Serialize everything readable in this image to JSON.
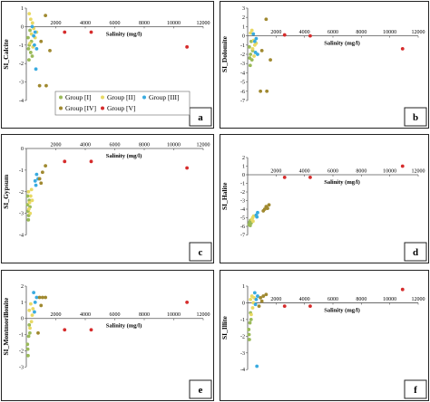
{
  "groups": [
    {
      "name": "Group [I]",
      "color": "#9aba59"
    },
    {
      "name": "Group [II]",
      "color": "#e8d964"
    },
    {
      "name": "Group [III]",
      "color": "#39abe0"
    },
    {
      "name": "Group [IV]",
      "color": "#a08930"
    },
    {
      "name": "Group [V]",
      "color": "#d62c2c"
    }
  ],
  "chart_data": [
    {
      "type": "scatter",
      "letter": "a",
      "ylabel": "SI_Calcite",
      "xlabel": "Salinity (mg/l)",
      "xlim": [
        0,
        12000
      ],
      "xticks": [
        2000,
        4000,
        6000,
        8000,
        10000,
        12000
      ],
      "ylim": [
        -4,
        1
      ],
      "yticks": [
        1,
        0,
        -1,
        -2,
        -3,
        -4
      ],
      "xaxis_at": 0,
      "legend": "inside-bottom",
      "series": [
        {
          "group": 0,
          "points": [
            [
              120,
              -0.6
            ],
            [
              200,
              -1.0
            ],
            [
              250,
              -0.2
            ],
            [
              300,
              -1.4
            ],
            [
              180,
              -1.8
            ],
            [
              350,
              -0.8
            ],
            [
              150,
              -1.2
            ],
            [
              400,
              -1.6
            ]
          ]
        },
        {
          "group": 1,
          "points": [
            [
              200,
              0.7
            ],
            [
              300,
              0.4
            ],
            [
              420,
              0.2
            ],
            [
              500,
              -0.1
            ],
            [
              350,
              -0.4
            ],
            [
              600,
              -0.6
            ],
            [
              250,
              -0.9
            ],
            [
              700,
              -0.3
            ],
            [
              450,
              -1.1
            ]
          ]
        },
        {
          "group": 2,
          "points": [
            [
              400,
              0.0
            ],
            [
              600,
              -0.3
            ],
            [
              500,
              -0.5
            ],
            [
              550,
              -1.0
            ],
            [
              700,
              -1.2
            ],
            [
              650,
              -2.3
            ]
          ]
        },
        {
          "group": 3,
          "points": [
            [
              1300,
              0.6
            ],
            [
              1000,
              -0.8
            ],
            [
              1600,
              -1.3
            ],
            [
              900,
              -3.2
            ],
            [
              1350,
              -3.2
            ]
          ]
        },
        {
          "group": 4,
          "points": [
            [
              2600,
              -0.3
            ],
            [
              4400,
              -0.3
            ],
            [
              10900,
              -1.1
            ]
          ]
        }
      ]
    },
    {
      "type": "scatter",
      "letter": "b",
      "ylabel": "SI_Dolomite",
      "xlabel": "Salinity (mg/l)",
      "xlim": [
        0,
        12000
      ],
      "xticks": [
        2000,
        4000,
        6000,
        8000,
        10000,
        12000
      ],
      "ylim": [
        -7,
        3
      ],
      "yticks": [
        3,
        2,
        1,
        0,
        -1,
        -2,
        -3,
        -4,
        -5,
        -6,
        -7
      ],
      "xaxis_at": 0,
      "series": [
        {
          "group": 0,
          "points": [
            [
              120,
              -1.2
            ],
            [
              200,
              -2.0
            ],
            [
              250,
              -0.6
            ],
            [
              300,
              -2.6
            ],
            [
              180,
              -3.2
            ],
            [
              350,
              -1.6
            ],
            [
              150,
              -2.4
            ]
          ]
        },
        {
          "group": 1,
          "points": [
            [
              200,
              0.3
            ],
            [
              300,
              0.6
            ],
            [
              420,
              -0.5
            ],
            [
              500,
              -1.0
            ],
            [
              350,
              -1.4
            ],
            [
              600,
              -0.8
            ],
            [
              450,
              -2.2
            ]
          ]
        },
        {
          "group": 2,
          "points": [
            [
              400,
              0.2
            ],
            [
              600,
              -0.3
            ],
            [
              500,
              -0.6
            ],
            [
              550,
              -1.8
            ],
            [
              700,
              -2.0
            ]
          ]
        },
        {
          "group": 3,
          "points": [
            [
              1300,
              1.8
            ],
            [
              1000,
              -1.6
            ],
            [
              1600,
              -2.6
            ],
            [
              900,
              -6.0
            ],
            [
              1350,
              -6.0
            ]
          ]
        },
        {
          "group": 4,
          "points": [
            [
              2600,
              0.1
            ],
            [
              4400,
              0.0
            ],
            [
              10900,
              -1.4
            ]
          ]
        }
      ]
    },
    {
      "type": "scatter",
      "letter": "c",
      "ylabel": "SI_Gypsum",
      "xlabel": "Salinity (mg/l)",
      "xlim": [
        0,
        12000
      ],
      "xticks": [
        2000,
        4000,
        6000,
        8000,
        10000,
        12000
      ],
      "ylim": [
        -4,
        0
      ],
      "yticks": [
        0,
        -1,
        -2,
        -3,
        -4
      ],
      "xaxis_at": 0,
      "series": [
        {
          "group": 0,
          "points": [
            [
              80,
              -2.6
            ],
            [
              120,
              -2.9
            ],
            [
              160,
              -3.1
            ],
            [
              200,
              -2.4
            ],
            [
              100,
              -2.2
            ],
            [
              250,
              -2.7
            ],
            [
              140,
              -3.3
            ]
          ]
        },
        {
          "group": 1,
          "points": [
            [
              150,
              -2.0
            ],
            [
              220,
              -2.5
            ],
            [
              300,
              -2.2
            ],
            [
              350,
              -1.9
            ],
            [
              180,
              -2.8
            ],
            [
              260,
              -3.0
            ],
            [
              400,
              -2.4
            ]
          ]
        },
        {
          "group": 2,
          "points": [
            [
              600,
              -1.5
            ],
            [
              700,
              -1.2
            ],
            [
              800,
              -1.4
            ],
            [
              650,
              -1.7
            ]
          ]
        },
        {
          "group": 3,
          "points": [
            [
              900,
              -1.4
            ],
            [
              1100,
              -1.1
            ],
            [
              1300,
              -0.8
            ],
            [
              1000,
              -1.6
            ]
          ]
        },
        {
          "group": 4,
          "points": [
            [
              2600,
              -0.6
            ],
            [
              4400,
              -0.6
            ],
            [
              10900,
              -0.9
            ]
          ]
        }
      ]
    },
    {
      "type": "scatter",
      "letter": "d",
      "ylabel": "SI_Halite",
      "xlabel": "Salinity (mg/l)",
      "xlim": [
        0,
        12000
      ],
      "xticks": [
        2000,
        4000,
        6000,
        8000,
        10000,
        12000
      ],
      "ylim": [
        -7,
        2
      ],
      "yticks": [
        2,
        1,
        0,
        -1,
        -2,
        -3,
        -4,
        -5,
        -6,
        -7
      ],
      "xaxis_at": 0,
      "series": [
        {
          "group": 0,
          "points": [
            [
              100,
              -5.8
            ],
            [
              150,
              -5.5
            ],
            [
              200,
              -5.3
            ],
            [
              250,
              -5.6
            ],
            [
              180,
              -5.9
            ]
          ]
        },
        {
          "group": 1,
          "points": [
            [
              300,
              -5.2
            ],
            [
              350,
              -5.0
            ],
            [
              420,
              -4.8
            ],
            [
              380,
              -5.4
            ]
          ]
        },
        {
          "group": 2,
          "points": [
            [
              600,
              -4.7
            ],
            [
              700,
              -4.4
            ],
            [
              650,
              -4.9
            ]
          ]
        },
        {
          "group": 3,
          "points": [
            [
              1100,
              -4.2
            ],
            [
              1300,
              -3.7
            ],
            [
              1500,
              -3.5
            ],
            [
              1200,
              -4.0
            ],
            [
              1400,
              -3.9
            ]
          ]
        },
        {
          "group": 4,
          "points": [
            [
              2600,
              -0.3
            ],
            [
              4400,
              -0.3
            ],
            [
              10900,
              1.0
            ]
          ]
        }
      ]
    },
    {
      "type": "scatter",
      "letter": "e",
      "ylabel": "SI_Montmorillonite",
      "xlabel": "Salinity (mg/l)",
      "xlim": [
        0,
        12000
      ],
      "xticks": [
        2000,
        4000,
        6000,
        8000,
        10000,
        12000
      ],
      "ylim": [
        -3,
        2
      ],
      "yticks": [
        2,
        1,
        0,
        -1,
        -2,
        -3
      ],
      "xaxis_at": 0,
      "series": [
        {
          "group": 0,
          "points": [
            [
              80,
              -1.6
            ],
            [
              120,
              -2.3
            ],
            [
              160,
              -1.1
            ],
            [
              200,
              -0.4
            ],
            [
              100,
              -1.9
            ],
            [
              240,
              -0.9
            ]
          ]
        },
        {
          "group": 1,
          "points": [
            [
              200,
              0.5
            ],
            [
              300,
              0.9
            ],
            [
              400,
              0.2
            ],
            [
              350,
              -0.2
            ],
            [
              450,
              0.6
            ],
            [
              250,
              -0.6
            ]
          ]
        },
        {
          "group": 2,
          "points": [
            [
              500,
              1.6
            ],
            [
              700,
              1.3
            ],
            [
              600,
              1.0
            ],
            [
              550,
              0.4
            ]
          ]
        },
        {
          "group": 3,
          "points": [
            [
              900,
              1.3
            ],
            [
              1100,
              1.3
            ],
            [
              1000,
              0.8
            ],
            [
              1300,
              1.3
            ],
            [
              800,
              -0.9
            ]
          ]
        },
        {
          "group": 4,
          "points": [
            [
              2600,
              -0.7
            ],
            [
              4400,
              -0.7
            ],
            [
              10900,
              1.0
            ]
          ]
        }
      ]
    },
    {
      "type": "scatter",
      "letter": "f",
      "ylabel": "SI_Illite",
      "xlabel": "Salinity (mg/l)",
      "xlim": [
        0,
        12000
      ],
      "xticks": [
        2000,
        4000,
        6000,
        8000,
        10000,
        12000
      ],
      "ylim": [
        -4,
        1
      ],
      "yticks": [
        1,
        0,
        -1,
        -2,
        -3,
        -4
      ],
      "xaxis_at": 0,
      "series": [
        {
          "group": 0,
          "points": [
            [
              80,
              -1.6
            ],
            [
              120,
              -2.2
            ],
            [
              160,
              -1.2
            ],
            [
              200,
              -0.6
            ],
            [
              100,
              -1.9
            ],
            [
              240,
              -1.0
            ]
          ]
        },
        {
          "group": 1,
          "points": [
            [
              200,
              0.2
            ],
            [
              300,
              0.4
            ],
            [
              400,
              0.0
            ],
            [
              350,
              -0.3
            ],
            [
              450,
              0.3
            ],
            [
              250,
              -0.7
            ]
          ]
        },
        {
          "group": 2,
          "points": [
            [
              500,
              0.6
            ],
            [
              700,
              0.4
            ],
            [
              600,
              0.2
            ],
            [
              550,
              -0.1
            ],
            [
              650,
              -3.8
            ]
          ]
        },
        {
          "group": 3,
          "points": [
            [
              900,
              0.3
            ],
            [
              1100,
              0.4
            ],
            [
              1000,
              0.1
            ],
            [
              1300,
              0.5
            ],
            [
              800,
              -0.2
            ]
          ]
        },
        {
          "group": 4,
          "points": [
            [
              2600,
              -0.2
            ],
            [
              4400,
              -0.2
            ],
            [
              10900,
              0.8
            ]
          ]
        }
      ]
    }
  ]
}
